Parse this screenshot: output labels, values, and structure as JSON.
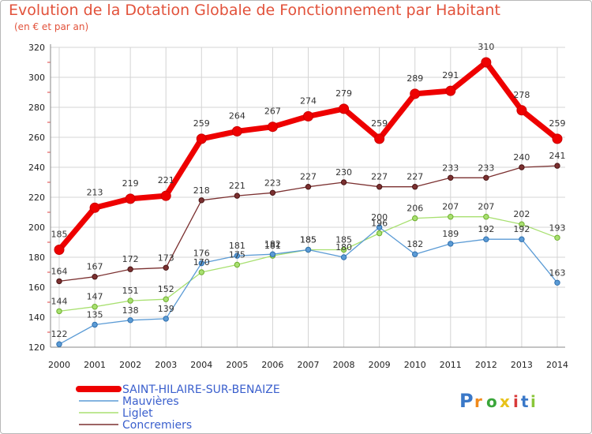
{
  "chart_data": {
    "type": "line",
    "title": "Evolution de la Dotation Globale de Fonctionnement par Habitant",
    "subtitle": "(en € et par an)",
    "xlabel": "",
    "ylabel": "",
    "ylim": [
      120,
      320
    ],
    "yticks": [
      120,
      140,
      160,
      180,
      200,
      220,
      240,
      260,
      280,
      300,
      320
    ],
    "categories": [
      "2000",
      "2001",
      "2002",
      "2003",
      "2004",
      "2005",
      "2006",
      "2007",
      "2008",
      "2009",
      "2010",
      "2011",
      "2012",
      "2013",
      "2014"
    ],
    "grid": true,
    "legend_position": "bottom-left",
    "series": [
      {
        "name": "SAINT-HILAIRE-SUR-BENAIZE",
        "color": "#ee0000",
        "values": [
          185,
          213,
          219,
          221,
          259,
          264,
          267,
          274,
          279,
          259,
          289,
          291,
          310,
          278,
          259
        ],
        "labels": [
          "185",
          "213",
          "219",
          "221",
          "259",
          "264",
          "267",
          "274",
          "279",
          "259",
          "289",
          "291",
          "310",
          "278",
          "259"
        ]
      },
      {
        "name": "Mauvières",
        "color": "#5b9bd5",
        "values": [
          122,
          135,
          138,
          139,
          176,
          181,
          182,
          185,
          180,
          200,
          182,
          189,
          192,
          192,
          163
        ],
        "labels": [
          "122",
          "135",
          "138",
          "139",
          "176",
          "181",
          "182",
          "185",
          "180",
          "200",
          "182",
          "189",
          "192",
          "192",
          "163"
        ]
      },
      {
        "name": "Liglet",
        "color": "#a8e070",
        "values": [
          144,
          147,
          151,
          152,
          170,
          175,
          181,
          185,
          185,
          196,
          206,
          207,
          207,
          202,
          193
        ],
        "labels": [
          "144",
          "147",
          "151",
          "152",
          "170",
          "175",
          "181",
          "185",
          "185",
          "196",
          "206",
          "207",
          "207",
          "202",
          "193"
        ]
      },
      {
        "name": "Concremiers",
        "color": "#7b3030",
        "values": [
          164,
          167,
          172,
          173,
          218,
          221,
          223,
          227,
          230,
          227,
          227,
          233,
          233,
          240,
          241
        ],
        "labels": [
          "164",
          "167",
          "172",
          "173",
          "218",
          "221",
          "223",
          "227",
          "230",
          "227",
          "227",
          "233",
          "233",
          "240",
          "241"
        ]
      }
    ]
  },
  "logo": {
    "text": "Proxiti",
    "letter_colors": [
      "#3a78c8",
      "#f08a1c",
      "#3aa63a",
      "#e8c21a",
      "#d83a3a",
      "#3a78c8",
      "#8ac63a"
    ]
  }
}
